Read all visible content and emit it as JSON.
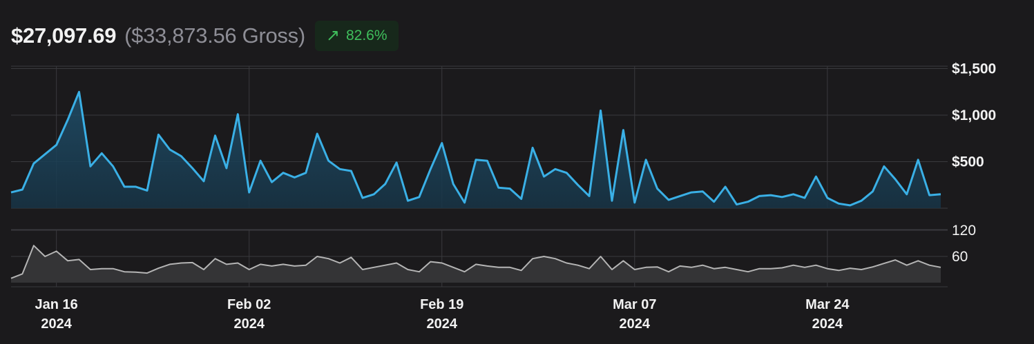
{
  "header": {
    "net_total": "$27,097.69",
    "gross_total": "($33,873.56 Gross)",
    "change_pct": "82.6%",
    "change_icon": "arrow-up-right-icon"
  },
  "colors": {
    "background": "#1b1a1c",
    "revenue_line": "#3ab0e6",
    "count_line": "#b5b5b5",
    "positive": "#3fbf5c",
    "grid": "#3a3a3e"
  },
  "chart_data": [
    {
      "type": "area",
      "series": [
        {
          "values": [
            170,
            200,
            480,
            580,
            680,
            950,
            1250,
            450,
            590,
            450,
            230,
            230,
            190,
            790,
            630,
            560,
            430,
            290,
            780,
            430,
            1010,
            170,
            510,
            280,
            380,
            330,
            380,
            800,
            510,
            420,
            400,
            110,
            150,
            260,
            490,
            80,
            120,
            420,
            700,
            260,
            60,
            520,
            510,
            220,
            210,
            100,
            650,
            340,
            420,
            380,
            250,
            130,
            1050,
            80,
            840,
            60,
            520,
            210,
            90,
            130,
            170,
            180,
            70,
            230,
            40,
            70,
            130,
            140,
            120,
            150,
            110,
            340,
            110,
            50,
            30,
            80,
            180,
            450,
            310,
            150,
            520,
            140,
            150
          ]
        }
      ],
      "ylim": [
        0,
        1500
      ],
      "yticks": [
        "$500",
        "$1,000",
        "$1,500"
      ],
      "ytick_values": [
        500,
        1000,
        1500
      ],
      "grid": true
    },
    {
      "type": "area",
      "series": [
        {
          "values": [
            10,
            20,
            85,
            60,
            72,
            50,
            53,
            30,
            32,
            32,
            25,
            24,
            22,
            33,
            42,
            45,
            46,
            30,
            55,
            42,
            45,
            30,
            42,
            38,
            42,
            38,
            40,
            60,
            55,
            45,
            58,
            30,
            35,
            40,
            45,
            30,
            25,
            48,
            45,
            35,
            25,
            42,
            38,
            35,
            35,
            28,
            55,
            60,
            55,
            45,
            40,
            32,
            60,
            30,
            50,
            30,
            35,
            36,
            25,
            38,
            35,
            40,
            32,
            35,
            30,
            25,
            32,
            32,
            34,
            40,
            35,
            40,
            32,
            28,
            33,
            30,
            36,
            44,
            52,
            40,
            50,
            40,
            35
          ]
        }
      ],
      "ylim": [
        0,
        120
      ],
      "yticks": [
        "60",
        "120"
      ],
      "ytick_values": [
        60,
        120
      ],
      "grid": true
    }
  ],
  "x_axis": {
    "start_date": "2024-01-12",
    "ticks": [
      {
        "date": "2024-01-16",
        "label": "Jan 16",
        "year": "2024"
      },
      {
        "date": "2024-02-02",
        "label": "Feb 02",
        "year": "2024"
      },
      {
        "date": "2024-02-19",
        "label": "Feb 19",
        "year": "2024"
      },
      {
        "date": "2024-03-07",
        "label": "Mar 07",
        "year": "2024"
      },
      {
        "date": "2024-03-24",
        "label": "Mar 24",
        "year": "2024"
      }
    ]
  }
}
